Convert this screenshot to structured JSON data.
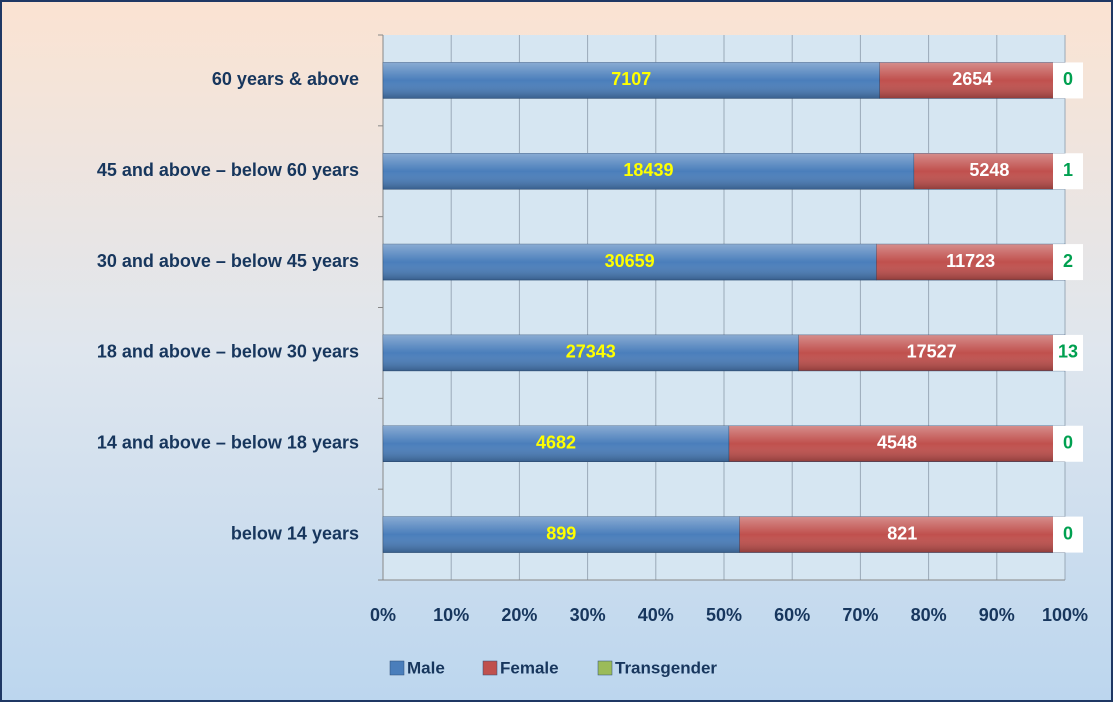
{
  "chart_data": {
    "type": "bar",
    "orientation": "horizontal",
    "stacked": "percent",
    "categories": [
      "60 years & above",
      "45 and above – below 60 years",
      "30 and above – below 45 years",
      "18 and above – below 30 years",
      "14 and above – below 18 years",
      "below 14 years"
    ],
    "series": [
      {
        "name": "Male",
        "color": "#4a7ebb",
        "label_color": "#ffff00",
        "values": [
          7107,
          18439,
          30659,
          27343,
          4682,
          899
        ]
      },
      {
        "name": "Female",
        "color": "#c0504d",
        "label_color": "#ffffff",
        "values": [
          2654,
          5248,
          11723,
          17527,
          4548,
          821
        ]
      },
      {
        "name": "Transgender",
        "color": "#9bbb59",
        "label_color": "#00a050",
        "values": [
          0,
          1,
          2,
          13,
          0,
          0
        ]
      }
    ],
    "xlim": [
      0,
      100
    ],
    "xticks": [
      {
        "value": 0,
        "label": "0%"
      },
      {
        "value": 10,
        "label": "10%"
      },
      {
        "value": 20,
        "label": "20%"
      },
      {
        "value": 30,
        "label": "30%"
      },
      {
        "value": 40,
        "label": "40%"
      },
      {
        "value": 50,
        "label": "50%"
      },
      {
        "value": 60,
        "label": "60%"
      },
      {
        "value": 70,
        "label": "70%"
      },
      {
        "value": 80,
        "label": "80%"
      },
      {
        "value": 90,
        "label": "90%"
      },
      {
        "value": 100,
        "label": "100%"
      }
    ],
    "grid": true,
    "legend": "bottom"
  }
}
